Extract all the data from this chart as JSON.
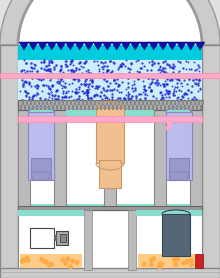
{
  "bg_color": "#e0e0e0",
  "outer_wall_color": "#cccccc",
  "white": "#ffffff",
  "cyan_pool": "#00ccdd",
  "spray_bg": "#aaddff",
  "blue_dot": "#2222cc",
  "nozzle_color": "#1111aa",
  "pink_pipe": "#ffaacc",
  "teal_strip": "#88ddcc",
  "hatch_gray": "#aaaaaa",
  "steam_gen_fill": "#bbbbee",
  "steam_gen_edge": "#8888bb",
  "steam_gen_dark": "#9999cc",
  "reactor_fill": "#f0c090",
  "reactor_edge": "#cc9966",
  "dark_blue_tank": "#556677",
  "red_box": "#cc2222",
  "orange_pool": "#ffcc88",
  "orange_bubble": "#ffaa44",
  "equip_white": "#ffffff",
  "equip_gray": "#aaaaaa",
  "wall_edge": "#888888",
  "col_gray": "#bbbbbb",
  "floor_base": "#cccccc",
  "figsize": [
    2.2,
    2.78
  ],
  "dpi": 100
}
